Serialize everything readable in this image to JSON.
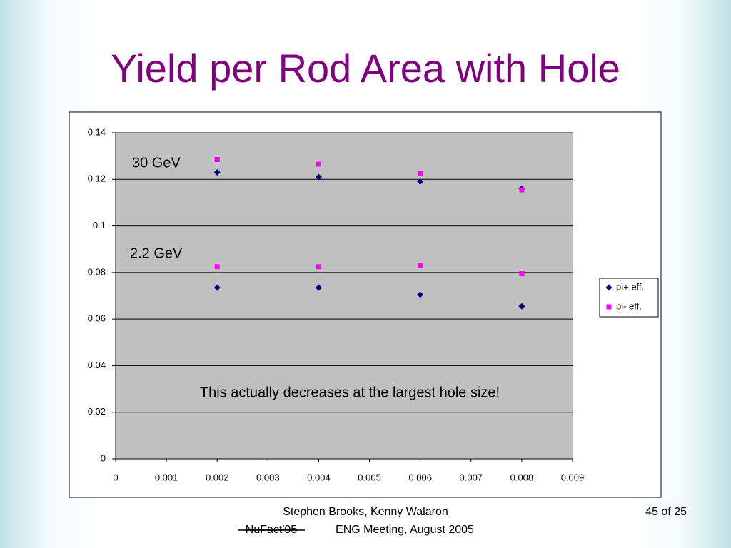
{
  "title": "Yield per Rod Area with Hole",
  "chart_data": {
    "type": "scatter",
    "annotations": [
      "30 GeV",
      "2.2 GeV",
      "This actually decreases at the largest hole size!"
    ],
    "series": [
      {
        "name": "pi+ eff.",
        "color": "#000080",
        "marker": "diamond",
        "x": [
          0.002,
          0.004,
          0.006,
          0.008,
          0.002,
          0.004,
          0.006,
          0.008
        ],
        "values": [
          0.123,
          0.121,
          0.119,
          0.116,
          0.0735,
          0.0735,
          0.0705,
          0.0655
        ]
      },
      {
        "name": "pi- eff.",
        "color": "#ff00ff",
        "marker": "square",
        "x": [
          0.002,
          0.004,
          0.006,
          0.008,
          0.002,
          0.004,
          0.006,
          0.008
        ],
        "values": [
          0.1285,
          0.1265,
          0.1225,
          0.1155,
          0.0825,
          0.0825,
          0.083,
          0.0795
        ]
      }
    ],
    "xlim": [
      0,
      0.009
    ],
    "xticks": [
      0,
      0.001,
      0.002,
      0.003,
      0.004,
      0.005,
      0.006,
      0.007,
      0.008,
      0.009
    ],
    "ylim": [
      0,
      0.14
    ],
    "yticks": [
      0,
      0.02,
      0.04,
      0.06,
      0.08,
      0.1,
      0.12,
      0.14
    ],
    "grid": true,
    "legend": "right",
    "plot_background": "#c0c0c0"
  },
  "footer": {
    "authors": "Stephen Brooks, Kenny Walaron",
    "conference": "NuFact'05",
    "meeting": "ENG Meeting, August 2005",
    "page": "45 of 25"
  }
}
